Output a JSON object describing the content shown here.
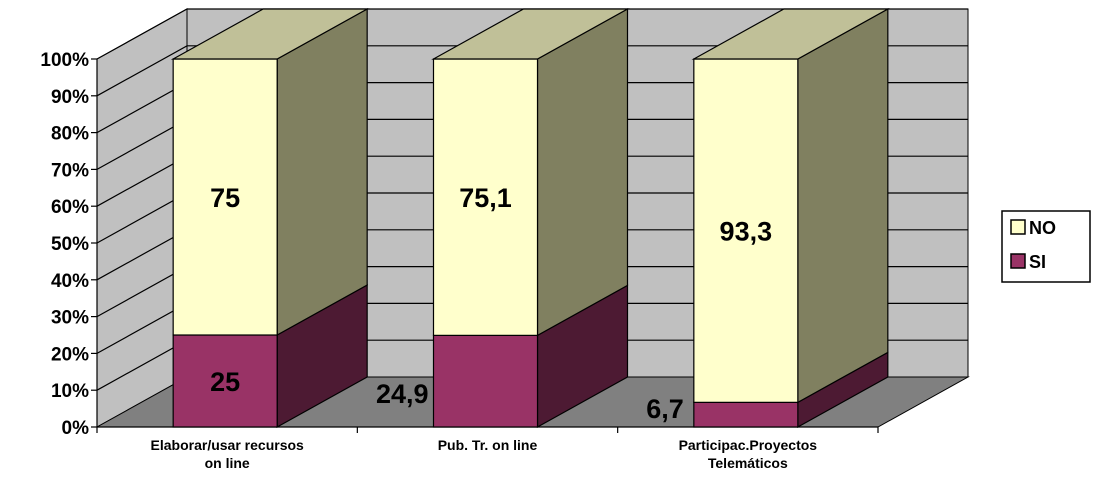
{
  "chart_data": {
    "type": "bar",
    "stacked": true,
    "percent": true,
    "three_d": true,
    "categories": [
      [
        "Elaborar/usar recursos",
        "on line"
      ],
      [
        "Pub. Tr. on line"
      ],
      [
        "Participac.Proyectos",
        "Telemáticos"
      ]
    ],
    "series": [
      {
        "name": "SI",
        "values": [
          25,
          24.9,
          6.7
        ],
        "labels": [
          "25",
          "24,9",
          "6,7"
        ],
        "color": "#993366"
      },
      {
        "name": "NO",
        "values": [
          75,
          75.1,
          93.3
        ],
        "labels": [
          "75",
          "75,1",
          "93,3"
        ],
        "color": "#ffffcc"
      }
    ],
    "yticks": [
      "0%",
      "10%",
      "20%",
      "30%",
      "40%",
      "50%",
      "60%",
      "70%",
      "80%",
      "90%",
      "100%"
    ],
    "ylim": [
      0,
      100
    ],
    "grid": true,
    "legend": "right",
    "legend_order": [
      "NO",
      "SI"
    ],
    "colors": {
      "back_wall": "#c0c0c0",
      "floor": "#808080",
      "no_side": "#808060",
      "no_top": "#c0c098",
      "si_side": "#4d1a33"
    }
  }
}
